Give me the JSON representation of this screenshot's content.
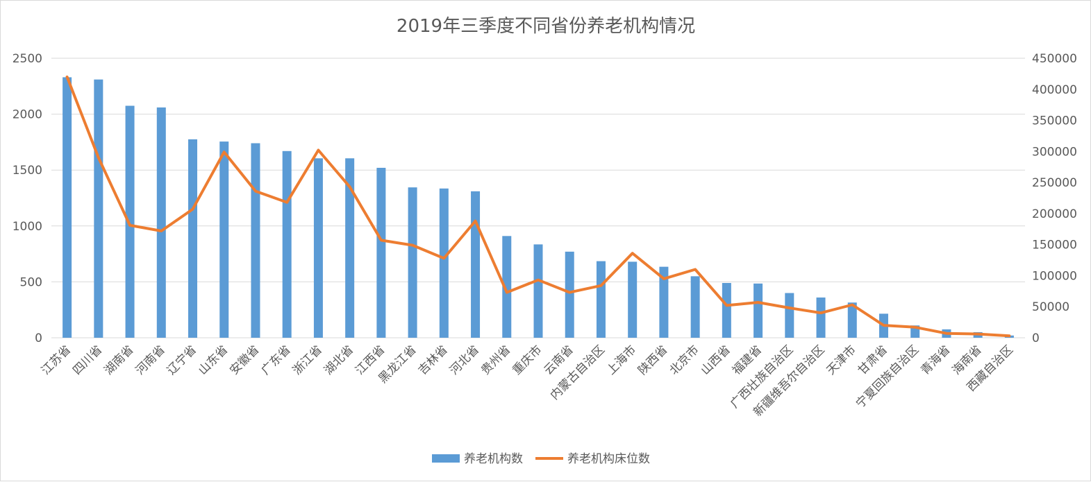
{
  "chart_data": {
    "type": "bar",
    "title": "2019年三季度不同省份养老机构情况",
    "categories": [
      "江苏省",
      "四川省",
      "湖南省",
      "河南省",
      "辽宁省",
      "山东省",
      "安徽省",
      "广东省",
      "浙江省",
      "湖北省",
      "江西省",
      "黑龙江省",
      "吉林省",
      "河北省",
      "贵州省",
      "重庆市",
      "云南省",
      "内蒙古自治区",
      "上海市",
      "陕西省",
      "北京市",
      "山西省",
      "福建省",
      "广西壮族自治区",
      "新疆维吾尔自治区",
      "天津市",
      "甘肃省",
      "宁夏回族自治区",
      "青海省",
      "海南省",
      "西藏自治区"
    ],
    "series": [
      {
        "name": "养老机构数",
        "type": "bar",
        "axis": "left",
        "color": "#5b9bd5",
        "values": [
          2330,
          2310,
          2075,
          2060,
          1775,
          1755,
          1740,
          1670,
          1605,
          1605,
          1520,
          1345,
          1335,
          1310,
          910,
          835,
          770,
          685,
          680,
          635,
          550,
          490,
          485,
          400,
          360,
          315,
          215,
          110,
          75,
          50,
          20
        ]
      },
      {
        "name": "养老机构床位数",
        "type": "line",
        "axis": "right",
        "color": "#ed7d31",
        "values": [
          420000,
          290000,
          181000,
          172000,
          207000,
          299000,
          236000,
          218000,
          302000,
          243000,
          157000,
          149000,
          128000,
          188000,
          73000,
          93000,
          73000,
          84000,
          136000,
          95000,
          110000,
          52000,
          57000,
          48000,
          40000,
          53000,
          20000,
          17000,
          7000,
          6000,
          3000
        ]
      }
    ],
    "y_left": {
      "min": 0,
      "max": 2500,
      "ticks": [
        0,
        500,
        1000,
        1500,
        2000,
        2500
      ]
    },
    "y_right": {
      "min": 0,
      "max": 450000,
      "ticks": [
        0,
        50000,
        100000,
        150000,
        200000,
        250000,
        300000,
        350000,
        400000,
        450000
      ]
    },
    "grid": true,
    "legend_position": "bottom"
  }
}
